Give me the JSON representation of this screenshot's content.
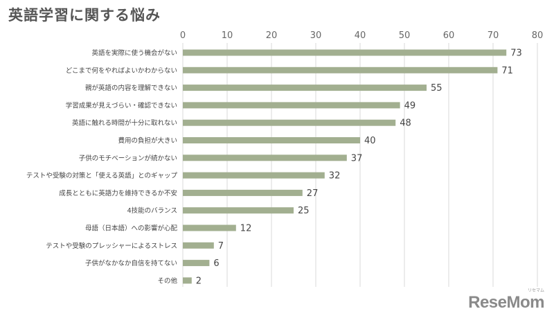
{
  "title": "英語学習に関する悩み",
  "logo": {
    "text": "ReseMom",
    "ruby": "リセマム"
  },
  "colors": {
    "bar": "#a2af90",
    "grid": "#d9d9d9",
    "axis_text": "#666666",
    "label_text": "#444444",
    "value_text": "#444444"
  },
  "chart_data": {
    "type": "bar",
    "orientation": "horizontal",
    "title": "英語学習に関する悩み",
    "categories": [
      "英語を実際に使う機会がない",
      "どこまで何をやればよいかわからない",
      "親が英語の内容を理解できない",
      "学習成果が見えづらい・確認できない",
      "英語に触れる時間が十分に取れない",
      "費用の負担が大きい",
      "子供のモチベーションが続かない",
      "テストや受験の対策と「使える英語」とのギャップ",
      "成長とともに英語力を維持できるか不安",
      "4技能のバランス",
      "母語（日本語）への影響が心配",
      "テストや受験のプレッシャーによるストレス",
      "子供がなかなか自信を持てない",
      "その他"
    ],
    "values": [
      73,
      71,
      55,
      49,
      48,
      40,
      37,
      32,
      27,
      25,
      12,
      7,
      6,
      2
    ],
    "xlim": [
      0,
      80
    ],
    "xticks": [
      0,
      10,
      20,
      30,
      40,
      50,
      60,
      70,
      80
    ],
    "tick_position": "top",
    "grid": true,
    "legend": "none"
  }
}
